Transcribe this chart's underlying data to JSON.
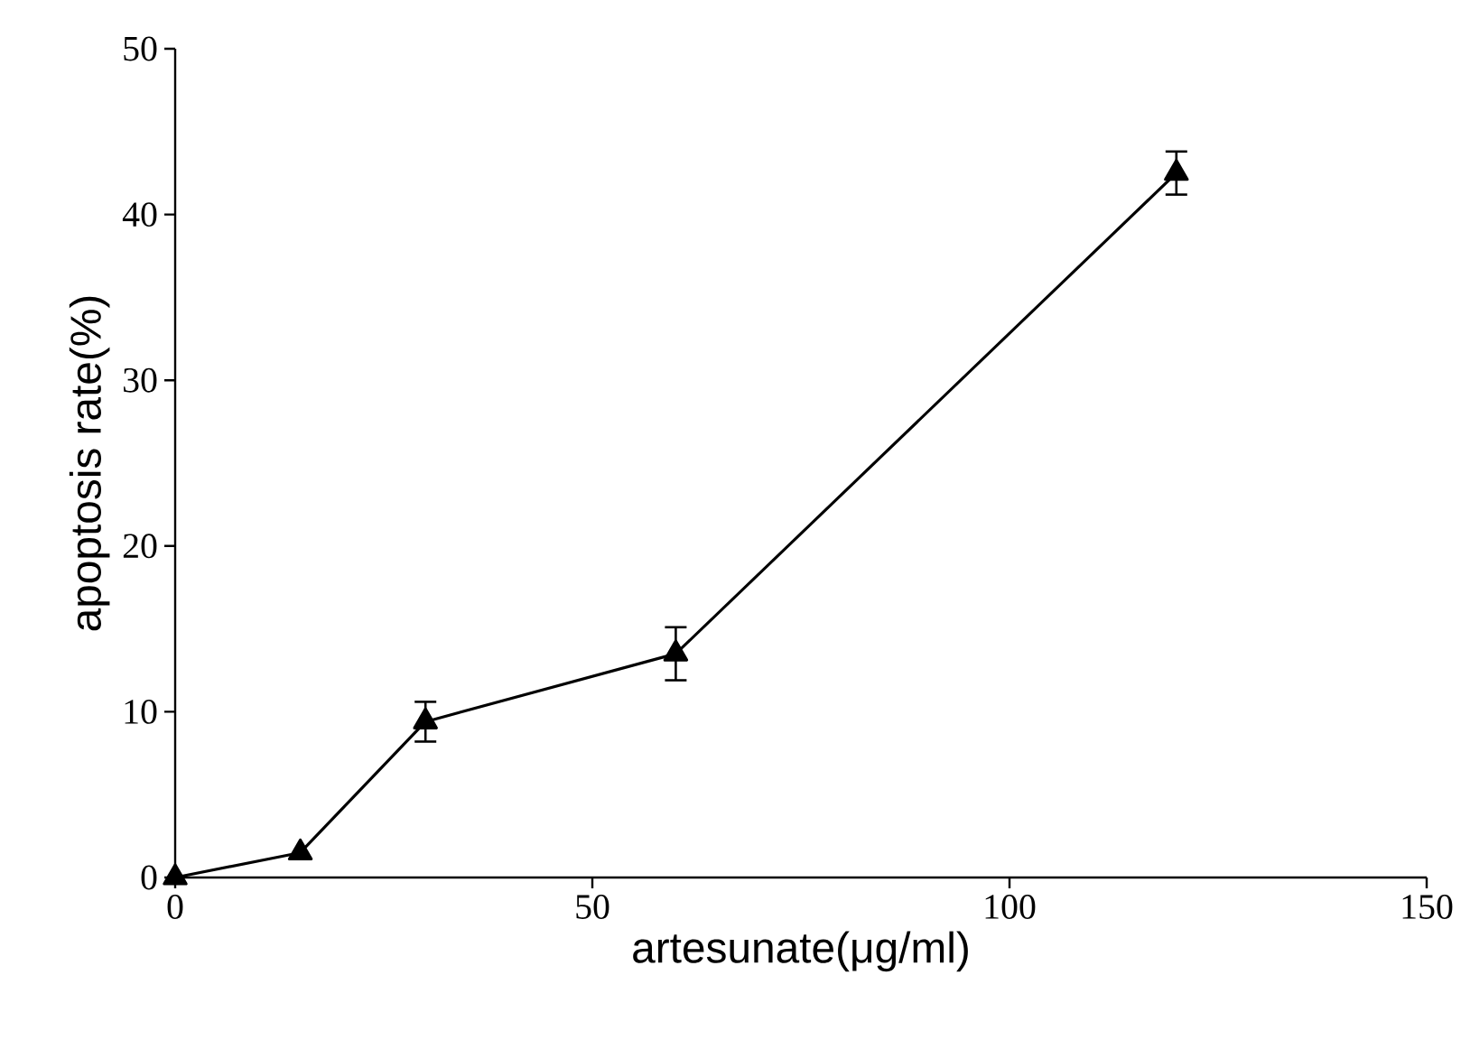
{
  "chart_data": {
    "type": "line",
    "xlabel": "artesunate(μg/ml)",
    "ylabel": "apoptosis rate(%)",
    "x": [
      0,
      15,
      30,
      60,
      120
    ],
    "values": [
      0,
      1.5,
      9.4,
      13.5,
      42.5
    ],
    "errors": [
      null,
      null,
      1.2,
      1.6,
      1.3
    ],
    "color": "#000000",
    "marker": "triangle",
    "line_style": "solid",
    "grid": false,
    "xlim": [
      0,
      150
    ],
    "xticks": [
      0,
      50,
      100,
      150
    ],
    "ylim": [
      0,
      50
    ],
    "yticks": [
      0,
      10,
      20,
      30,
      40,
      50
    ]
  }
}
